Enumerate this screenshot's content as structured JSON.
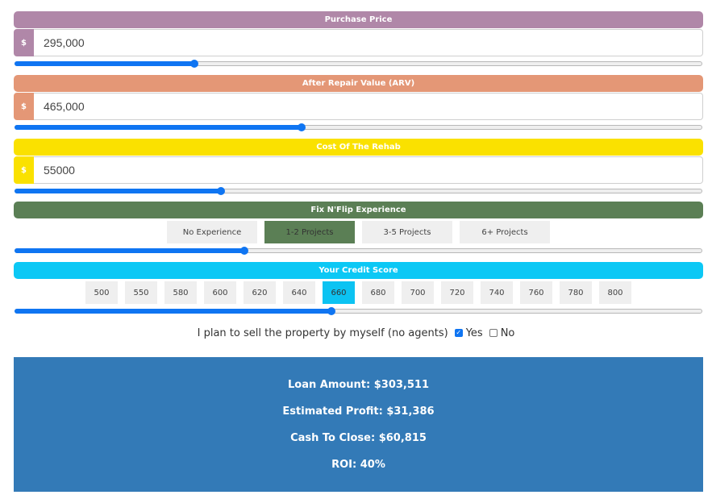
{
  "purchase_price": {
    "label": "Purchase Price",
    "prefix": "$",
    "value": "295,000",
    "slider_fraction": 0.262,
    "color": "#b087a8"
  },
  "arv": {
    "label": "After Repair Value (ARV)",
    "prefix": "$",
    "value": "465,000",
    "slider_fraction": 0.418,
    "color": "#e49776"
  },
  "rehab": {
    "label": "Cost Of The Rehab",
    "prefix": "$",
    "value": "55000",
    "slider_fraction": 0.3,
    "color": "#fae100"
  },
  "experience": {
    "label": "Fix N'Flip Experience",
    "color": "#5b7f55",
    "options": [
      "No Experience",
      "1-2 Projects",
      "3-5 Projects",
      "6+ Projects"
    ],
    "selected": "1-2 Projects",
    "slider_fraction": 0.334
  },
  "credit": {
    "label": "Your Credit Score",
    "color": "#0cc8f5",
    "options": [
      "500",
      "550",
      "580",
      "600",
      "620",
      "640",
      "660",
      "680",
      "700",
      "720",
      "740",
      "760",
      "780",
      "800"
    ],
    "selected": "660",
    "slider_fraction": 0.461
  },
  "sell": {
    "text": "I plan to sell the property by myself (no agents)",
    "yes_label": "Yes",
    "no_label": "No",
    "yes_checked": true,
    "no_checked": false
  },
  "results": {
    "loan_amount": "Loan Amount: $303,511",
    "estimated_profit": "Estimated Profit: $31,386",
    "cash_to_close": "Cash To Close: $60,815",
    "roi": "ROI: 40%",
    "background": "#337ab7"
  },
  "slider_color": "#0f75f2"
}
